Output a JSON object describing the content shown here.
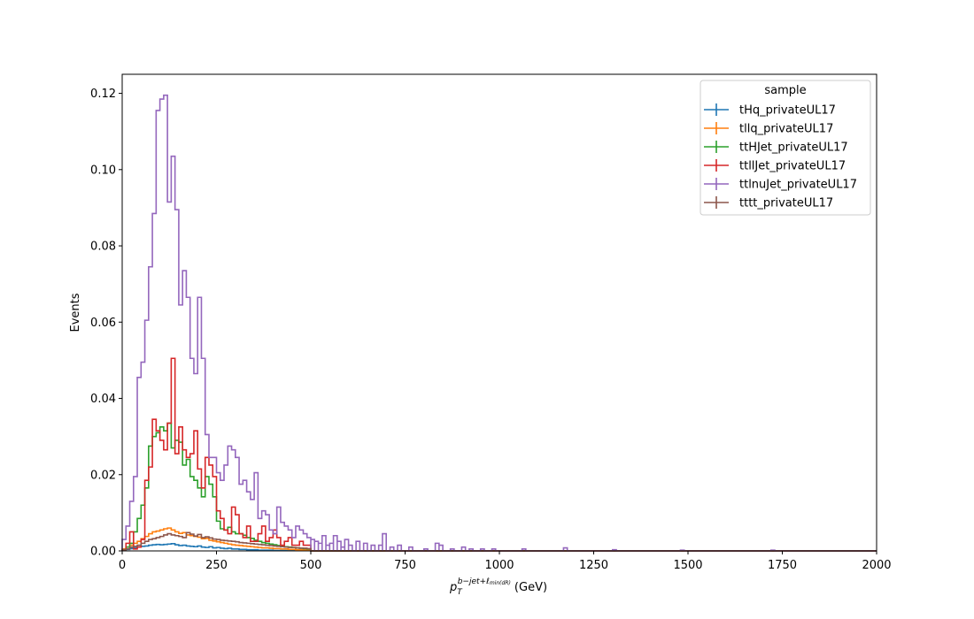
{
  "chart_data": {
    "type": "histogram",
    "title": "",
    "xlabel": {
      "base": "p",
      "sub": "T",
      "sup": "b−jet+ℓ",
      "sup2": "min(dR)",
      "unit": " (GeV)"
    },
    "ylabel": "Events",
    "xlim": [
      0,
      2000
    ],
    "ylim": [
      0,
      0.125
    ],
    "xticks": [
      0,
      250,
      500,
      750,
      1000,
      1250,
      1500,
      1750,
      2000
    ],
    "xtick_labels": [
      "0",
      "250",
      "500",
      "750",
      "1000",
      "1250",
      "1500",
      "1750",
      "2000"
    ],
    "yticks": [
      0,
      0.02,
      0.04,
      0.06,
      0.08,
      0.1,
      0.12
    ],
    "ytick_labels": [
      "0.00",
      "0.02",
      "0.04",
      "0.06",
      "0.08",
      "0.10",
      "0.12"
    ],
    "bin_width": 10,
    "grid": false,
    "legend": {
      "title": "sample",
      "placement": "top-right"
    },
    "series": [
      {
        "name": "tHq_privateUL17",
        "color": "#1f77b4",
        "values": [
          0.0002,
          0.0004,
          0.0006,
          0.0008,
          0.001,
          0.0012,
          0.0013,
          0.0015,
          0.0016,
          0.0017,
          0.0016,
          0.0017,
          0.0018,
          0.0019,
          0.0016,
          0.0014,
          0.0015,
          0.0013,
          0.0012,
          0.0011,
          0.0013,
          0.001,
          0.0009,
          0.0011,
          0.0008,
          0.0009,
          0.0007,
          0.0006,
          0.0007,
          0.0005,
          0.0005,
          0.0004,
          0.0004,
          0.0003,
          0.0003,
          0.0003,
          0.0002,
          0.0002,
          0.0002,
          0.0002,
          0.0001,
          0.0001,
          0.0001,
          0.0001,
          0.0001,
          0.0001,
          0.0001,
          0.0001,
          0.0001,
          0.0001
        ]
      },
      {
        "name": "tllq_privateUL17",
        "color": "#ff7f0e",
        "values": [
          0.0005,
          0.001,
          0.0015,
          0.002,
          0.0025,
          0.0032,
          0.0038,
          0.0045,
          0.005,
          0.0052,
          0.0055,
          0.0058,
          0.006,
          0.0055,
          0.005,
          0.0046,
          0.0048,
          0.0042,
          0.004,
          0.0038,
          0.0036,
          0.0032,
          0.0033,
          0.0028,
          0.0026,
          0.0024,
          0.0022,
          0.002,
          0.0018,
          0.0016,
          0.0015,
          0.0014,
          0.0013,
          0.0012,
          0.0011,
          0.001,
          0.0009,
          0.0008,
          0.0008,
          0.0007,
          0.0006,
          0.0006,
          0.0005,
          0.0005,
          0.0004,
          0.0004,
          0.0003,
          0.0003,
          0.0003,
          0.0002
        ]
      },
      {
        "name": "ttHJet_privateUL17",
        "color": "#2ca02c",
        "values": [
          0.0003,
          0.001,
          0.002,
          0.005,
          0.0085,
          0.012,
          0.0165,
          0.0275,
          0.03,
          0.031,
          0.0325,
          0.0315,
          0.0335,
          0.027,
          0.029,
          0.0285,
          0.0225,
          0.024,
          0.0195,
          0.0185,
          0.0165,
          0.0142,
          0.0195,
          0.0175,
          0.0142,
          0.0078,
          0.0058,
          0.0055,
          0.0062,
          0.005,
          0.0045,
          0.0045,
          0.0041,
          0.0035,
          0.0033,
          0.0028,
          0.0025,
          0.0022,
          0.002,
          0.0018,
          0.0016,
          0.0014,
          0.0012,
          0.0011,
          0.001,
          0.0009,
          0.0008,
          0.0007,
          0.0006,
          0.0005
        ]
      },
      {
        "name": "ttllJet_privateUL17",
        "color": "#d62728",
        "values": [
          0.0001,
          0.002,
          0.005,
          0.0005,
          0.001,
          0.003,
          0.0185,
          0.022,
          0.0345,
          0.0315,
          0.029,
          0.0265,
          0.0335,
          0.0505,
          0.0255,
          0.0325,
          0.0265,
          0.0245,
          0.0255,
          0.0315,
          0.0215,
          0.0165,
          0.0245,
          0.0225,
          0.0195,
          0.0105,
          0.0085,
          0.0055,
          0.0045,
          0.0115,
          0.0095,
          0.0045,
          0.0035,
          0.0065,
          0.0025,
          0.0025,
          0.0045,
          0.0065,
          0.0025,
          0.0035,
          0.0055,
          0.0035,
          0.0015,
          0.0025,
          0.0035,
          0.0015,
          0.0015,
          0.0025,
          0.0015,
          0.0015
        ]
      },
      {
        "name": "ttlnuJet_privateUL17",
        "color": "#9467bd",
        "values": [
          0.003,
          0.0065,
          0.013,
          0.0195,
          0.0455,
          0.0495,
          0.0605,
          0.0745,
          0.0885,
          0.1155,
          0.1185,
          0.1195,
          0.0915,
          0.1035,
          0.0895,
          0.0645,
          0.0735,
          0.0665,
          0.0505,
          0.0465,
          0.0665,
          0.0505,
          0.0305,
          0.0245,
          0.0245,
          0.0205,
          0.0185,
          0.0225,
          0.0275,
          0.0265,
          0.0245,
          0.0175,
          0.0185,
          0.0155,
          0.0135,
          0.0205,
          0.0085,
          0.0105,
          0.0095,
          0.0055,
          0.0045,
          0.0115,
          0.0075,
          0.0065,
          0.0055,
          0.0035,
          0.0065,
          0.0055,
          0.0045,
          0.0035
        ]
      },
      {
        "name": "tttt_privateUL17",
        "color": "#8c564b",
        "values": [
          0.0003,
          0.0005,
          0.001,
          0.0012,
          0.0015,
          0.002,
          0.0025,
          0.003,
          0.0032,
          0.0035,
          0.0038,
          0.0042,
          0.0045,
          0.0042,
          0.004,
          0.0038,
          0.0035,
          0.0048,
          0.0044,
          0.0039,
          0.0043,
          0.0035,
          0.0037,
          0.0034,
          0.0031,
          0.003,
          0.0028,
          0.0027,
          0.0026,
          0.0025,
          0.0024,
          0.0022,
          0.0021,
          0.002,
          0.0019,
          0.0018,
          0.0017,
          0.0016,
          0.0015,
          0.0014,
          0.0013,
          0.0012,
          0.0011,
          0.001,
          0.0009,
          0.0009,
          0.0008,
          0.0007,
          0.0007,
          0.0006
        ]
      }
    ],
    "tail_scatter": {
      "series": "ttlnuJet_privateUL17",
      "bins": [
        [
          500,
          0.003
        ],
        [
          510,
          0.0025
        ],
        [
          520,
          0.002
        ],
        [
          530,
          0.004
        ],
        [
          540,
          0.0015
        ],
        [
          550,
          0.002
        ],
        [
          560,
          0.004
        ],
        [
          570,
          0.0025
        ],
        [
          580,
          0.001
        ],
        [
          590,
          0.003
        ],
        [
          600,
          0.0015
        ],
        [
          620,
          0.0025
        ],
        [
          640,
          0.002
        ],
        [
          660,
          0.0015
        ],
        [
          680,
          0.0015
        ],
        [
          690,
          0.0045
        ],
        [
          710,
          0.001
        ],
        [
          730,
          0.0015
        ],
        [
          760,
          0.001
        ],
        [
          800,
          0.0005
        ],
        [
          830,
          0.002
        ],
        [
          840,
          0.0015
        ],
        [
          870,
          0.0005
        ],
        [
          900,
          0.001
        ],
        [
          920,
          0.0005
        ],
        [
          950,
          0.0005
        ],
        [
          980,
          0.0005
        ],
        [
          1060,
          0.0005
        ],
        [
          1170,
          0.0008
        ],
        [
          1300,
          0.0003
        ],
        [
          1480,
          0.0002
        ],
        [
          1720,
          0.0002
        ]
      ]
    }
  }
}
